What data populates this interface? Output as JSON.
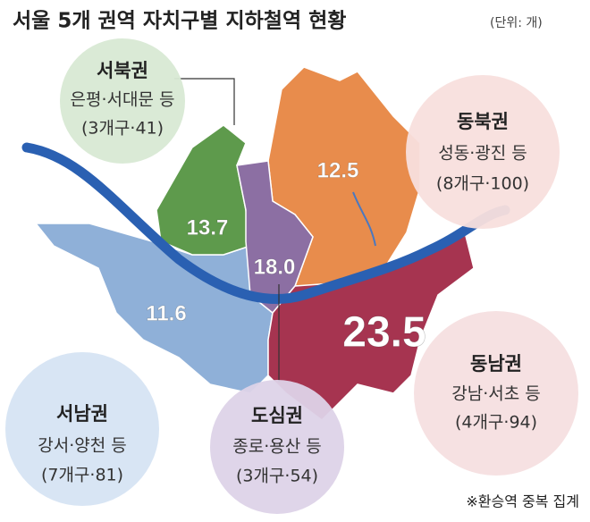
{
  "header": {
    "title": "서울 5개 권역 자치구별 지하철역 현황",
    "unit": "(단위: 개)"
  },
  "regions": [
    {
      "name": "서북권",
      "districts": "은평·서대문 등",
      "detail": "(3개구·41)",
      "value": "13.7"
    },
    {
      "name": "동북권",
      "districts": "성동·광진 등",
      "detail": "(8개구·100)",
      "value": "12.5"
    },
    {
      "name": "도심권",
      "districts": "종로·용산 등",
      "detail": "(3개구·54)",
      "value": "18.0"
    },
    {
      "name": "서남권",
      "districts": "강서·양천 등",
      "detail": "(7개구·81)",
      "value": "11.6"
    },
    {
      "name": "동남권",
      "districts": "강남·서초 등",
      "detail": "(4개구·94)",
      "value": "23.5"
    }
  ],
  "note": "※환승역 중복 집계"
}
